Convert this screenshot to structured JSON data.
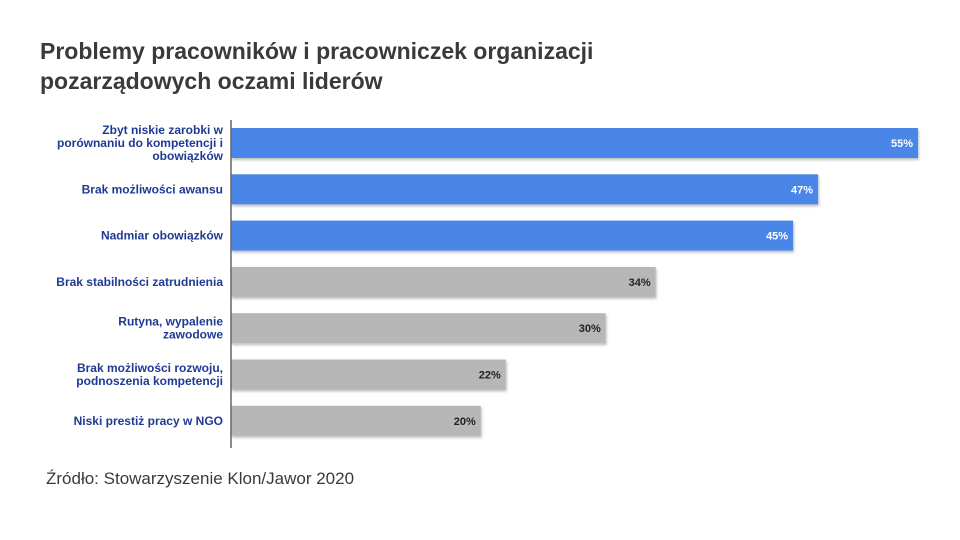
{
  "title": {
    "line1": "Problemy pracowników i pracowniczek organizacji",
    "line2": "pozarządowych oczami liderów"
  },
  "source": "Źródło: Stowarzyszenie Klon/Jawor 2020",
  "colors": {
    "highlight": "#4a86e8",
    "other": "#b7b7b7",
    "label": "#1f3a93",
    "axis": "#666666"
  },
  "chart_data": {
    "type": "bar",
    "orientation": "horizontal",
    "categories": [
      [
        "Zbyt niskie zarobki w",
        "porównaniu do kompetencji i",
        "obowiązków"
      ],
      [
        "Brak możliwości awansu"
      ],
      [
        "Nadmiar obowiązków"
      ],
      [
        "Brak stabilności zatrudnienia"
      ],
      [
        "Rutyna, wypalenie",
        "zawodowe"
      ],
      [
        "Brak możliwości rozwoju,",
        "podnoszenia kompetencji"
      ],
      [
        "Niski prestiż pracy w NGO"
      ]
    ],
    "values": [
      55,
      47,
      45,
      34,
      30,
      22,
      20
    ],
    "value_labels": [
      "55%",
      "47%",
      "45%",
      "34%",
      "30%",
      "22%",
      "20%"
    ],
    "highlighted": [
      true,
      true,
      true,
      false,
      false,
      false,
      false
    ],
    "xlim": [
      0,
      57
    ],
    "grid": false
  }
}
